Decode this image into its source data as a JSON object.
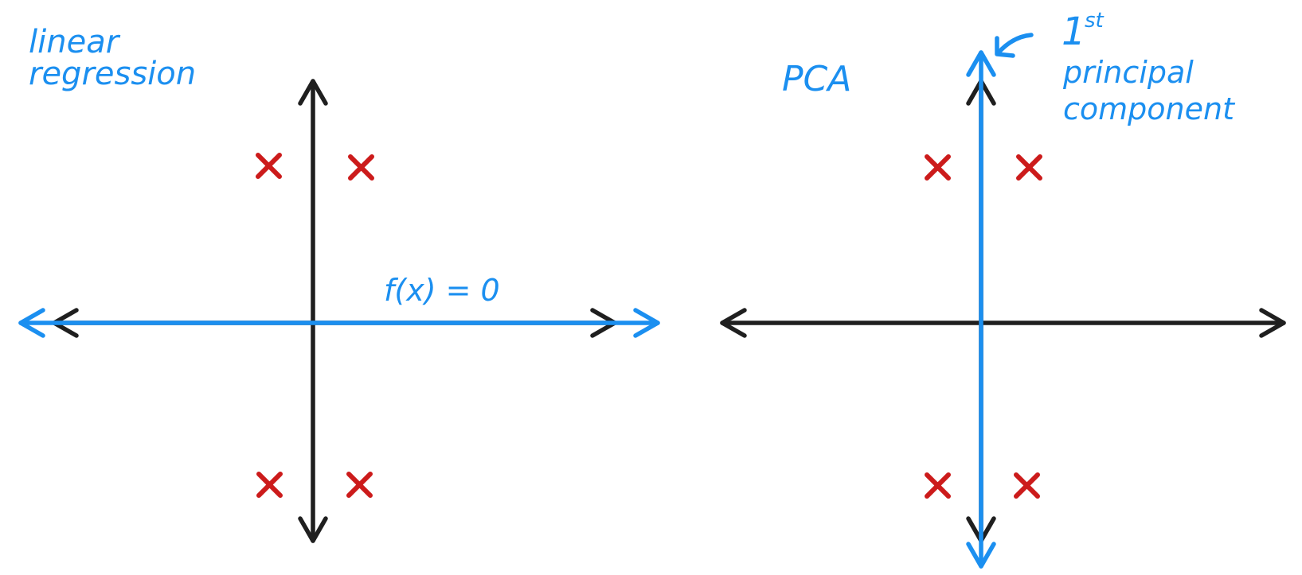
{
  "colors": {
    "background": "#ffffff",
    "axis": "#1f1f1f",
    "accent_blue": "#1b8ff0",
    "points_red": "#cc1b1b"
  },
  "left_panel": {
    "title_line1": "linear",
    "title_line2": "regression",
    "fit_line_label": "f(x) = 0",
    "point_marker": "x-mark"
  },
  "right_panel": {
    "title": "PCA",
    "component_label_number": "1",
    "component_label_suffix": "st",
    "component_label_line2": "principal",
    "component_label_line3": "component",
    "pointer": "arrow-pointer",
    "point_marker": "x-mark"
  }
}
